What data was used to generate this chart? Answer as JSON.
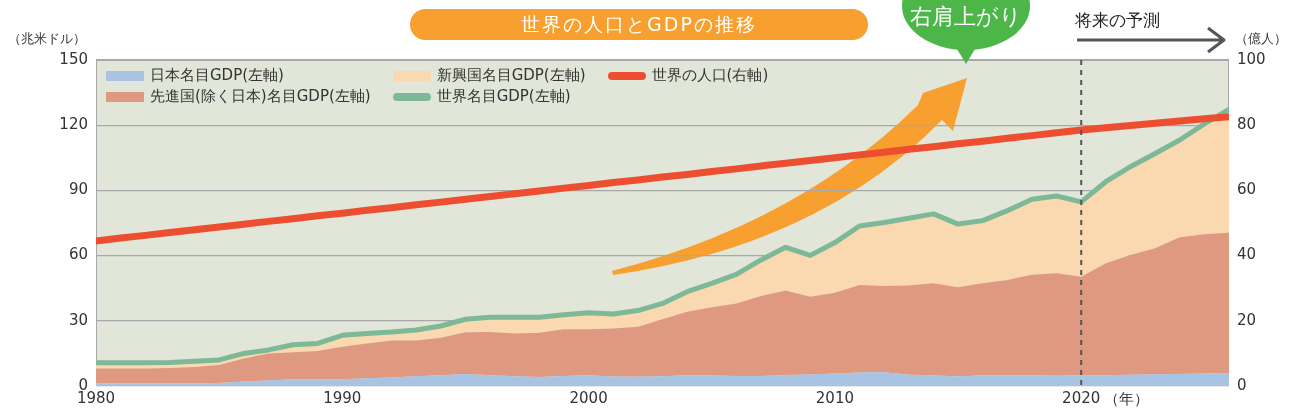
{
  "chart_data": {
    "type": "area",
    "title": "世界の人口とGDPの推移",
    "ylabel": "（兆米ドル）",
    "y2label": "（億人）",
    "xlabel": "（年）",
    "annotations": [
      "右肩上がり",
      "将来の予測"
    ],
    "x": [
      1980,
      1981,
      1982,
      1983,
      1984,
      1985,
      1986,
      1987,
      1988,
      1989,
      1990,
      1991,
      1992,
      1993,
      1994,
      1995,
      1996,
      1997,
      1998,
      1999,
      2000,
      2001,
      2002,
      2003,
      2004,
      2005,
      2006,
      2007,
      2008,
      2009,
      2010,
      2011,
      2012,
      2013,
      2014,
      2015,
      2016,
      2017,
      2018,
      2019,
      2020,
      2021,
      2022,
      2023,
      2024,
      2025,
      2026
    ],
    "stacked": true,
    "series": [
      {
        "name": "日本名目GDP(左軸)",
        "color": "#a9c3e3",
        "values": [
          1.1,
          1.2,
          1.1,
          1.2,
          1.3,
          1.4,
          2.1,
          2.5,
          3.1,
          3.1,
          3.1,
          3.6,
          3.9,
          4.5,
          4.9,
          5.5,
          4.9,
          4.5,
          4.1,
          4.6,
          4.9,
          4.4,
          4.2,
          4.5,
          4.9,
          4.8,
          4.6,
          4.6,
          5.1,
          5.3,
          5.8,
          6.2,
          6.3,
          5.2,
          4.9,
          4.4,
          5.0,
          4.9,
          5.0,
          5.1,
          5.0,
          5.0,
          5.2,
          5.4,
          5.5,
          5.8,
          6.0
        ]
      },
      {
        "name": "先進国(除く日本)名目GDP(左軸)",
        "color": "#df9980",
        "values": [
          6.9,
          6.8,
          6.9,
          7.1,
          7.5,
          8.3,
          10.6,
          12.5,
          12.4,
          13.0,
          15.0,
          16.0,
          17.0,
          16.4,
          17.3,
          19.2,
          19.9,
          19.7,
          20.4,
          21.5,
          21.2,
          22.0,
          23.1,
          26.2,
          29.3,
          31.4,
          33.4,
          36.8,
          38.8,
          35.8,
          37.1,
          40.3,
          39.7,
          41.0,
          42.4,
          41.0,
          42.3,
          43.9,
          46.2,
          46.8,
          45.3,
          51.5,
          55.1,
          58.0,
          62.9,
          64.0,
          64.5
        ]
      },
      {
        "name": "新興国名目GDP(左軸)",
        "color": "#fbd9b0",
        "values": [
          2.7,
          2.7,
          2.7,
          2.5,
          2.7,
          2.3,
          2.3,
          1.6,
          3.5,
          3.5,
          5.2,
          4.6,
          3.9,
          4.9,
          5.4,
          6.0,
          6.8,
          7.4,
          7.1,
          6.7,
          7.6,
          6.7,
          7.4,
          7.3,
          9.2,
          11.0,
          13.4,
          16.6,
          19.9,
          19.0,
          23.1,
          27.1,
          29.2,
          31.0,
          31.9,
          29.1,
          28.8,
          31.9,
          34.7,
          35.5,
          34.4,
          37.5,
          40.6,
          43.6,
          44.8,
          50.8,
          56.8
        ]
      },
      {
        "name": "世界名目GDP(左軸)",
        "type": "line",
        "color": "#7db897",
        "values": [
          10.7,
          10.7,
          10.7,
          10.8,
          11.4,
          12.0,
          15.0,
          16.6,
          19.0,
          19.6,
          23.3,
          24.2,
          24.8,
          25.8,
          27.6,
          30.7,
          31.6,
          31.6,
          31.6,
          32.8,
          33.7,
          33.1,
          34.7,
          38.0,
          43.4,
          47.2,
          51.4,
          58.0,
          63.8,
          60.1,
          66.0,
          73.6,
          75.2,
          77.2,
          79.2,
          74.5,
          76.1,
          80.7,
          85.9,
          87.4,
          84.7,
          94.0,
          100.9,
          107.0,
          113.2,
          120.6,
          127.3
        ]
      },
      {
        "name": "世界の人口(右軸)",
        "type": "line",
        "axis": "y2",
        "color": "#ee4e30",
        "values": [
          44.5,
          45.4,
          46.2,
          47.1,
          47.9,
          48.8,
          49.6,
          50.5,
          51.3,
          52.2,
          53.0,
          53.9,
          54.7,
          55.6,
          56.4,
          57.3,
          58.1,
          59.0,
          59.8,
          60.7,
          61.5,
          62.4,
          63.2,
          64.1,
          64.9,
          65.8,
          66.6,
          67.5,
          68.3,
          69.2,
          70.0,
          70.9,
          71.7,
          72.6,
          73.4,
          74.3,
          75.1,
          76.0,
          76.8,
          77.7,
          78.5,
          79.2,
          79.9,
          80.6,
          81.3,
          82.0,
          82.6
        ]
      }
    ],
    "xlim": [
      1980,
      2026
    ],
    "xticks": [
      1980,
      1990,
      2000,
      2010,
      2020
    ],
    "ylim": [
      0,
      150
    ],
    "yticks": [
      0,
      30,
      60,
      90,
      120,
      150
    ],
    "y2lim": [
      0,
      100
    ],
    "y2ticks": [
      0,
      20,
      40,
      60,
      80,
      100
    ],
    "ref_lines": [
      {
        "axis": "x",
        "value": 2020,
        "color": "#555555",
        "line_style": "dashed"
      }
    ],
    "grid": "y",
    "legend": "top left",
    "marker": "none"
  }
}
